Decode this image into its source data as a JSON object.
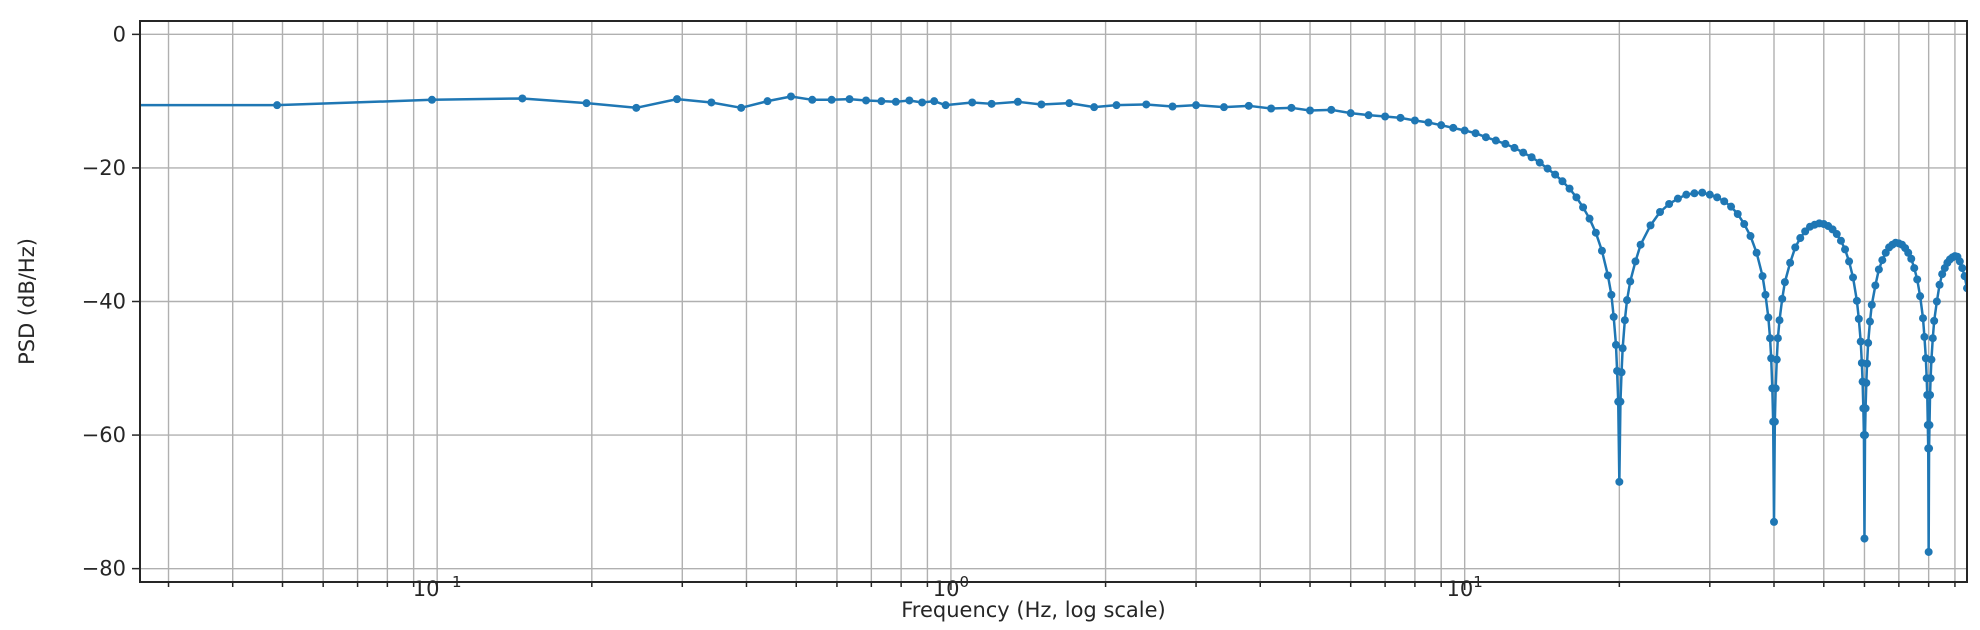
{
  "chart_data": {
    "type": "line",
    "title": "",
    "xlabel": "Frequency (Hz, log scale)",
    "ylabel": "PSD (dB/Hz)",
    "xscale": "log",
    "xlim": [
      0.0264,
      95
    ],
    "ylim": [
      -82,
      2
    ],
    "grid": "major and minor",
    "markers": true,
    "color": "#1f77b4",
    "x_ticks": [
      {
        "value": 0.1,
        "base": "10",
        "exp": "−1"
      },
      {
        "value": 1,
        "base": "10",
        "exp": "0"
      },
      {
        "value": 10,
        "base": "10",
        "exp": "1"
      }
    ],
    "y_ticks": [
      {
        "value": 0,
        "label": "0"
      },
      {
        "value": -20,
        "label": "−20"
      },
      {
        "value": -40,
        "label": "−40"
      },
      {
        "value": -60,
        "label": "−60"
      },
      {
        "value": -80,
        "label": "−80"
      }
    ],
    "series": [
      {
        "x": [
          0.0488,
          0.0977,
          0.1465,
          0.1953,
          0.2441,
          0.293,
          0.3418,
          0.3906,
          0.4395,
          0.4883,
          0.5371,
          0.5859,
          0.6348,
          0.6836,
          0.7324,
          0.7813,
          0.8301,
          0.8789,
          0.9277,
          0.9766,
          1.1,
          1.2,
          1.35,
          1.5,
          1.7,
          1.9,
          2.1,
          2.4,
          2.7,
          3,
          3.4,
          3.8,
          4.2,
          4.6,
          5,
          5.5,
          6,
          6.5,
          7,
          7.5,
          8,
          8.5,
          9,
          9.5,
          10,
          10.5,
          11,
          11.5,
          12,
          12.5,
          13,
          13.5,
          14,
          14.5,
          15,
          15.5,
          16,
          16.5,
          17,
          17.5,
          18,
          18.5,
          19,
          19.3,
          19.5,
          19.7,
          19.8,
          19.9,
          20,
          20.1,
          20.2,
          20.3,
          20.5,
          20.7,
          21,
          21.5,
          22,
          23,
          24,
          25,
          26,
          27,
          28,
          29,
          30,
          31,
          32,
          33,
          34,
          35,
          36,
          37,
          38,
          38.5,
          39,
          39.3,
          39.5,
          39.7,
          39.85,
          40,
          40.15,
          40.3,
          40.5,
          40.7,
          41,
          41.5,
          42,
          43,
          44,
          45,
          46,
          47,
          48,
          49,
          50,
          51,
          52,
          53,
          54,
          55,
          56,
          57,
          58,
          58.5,
          59,
          59.3,
          59.5,
          59.7,
          59.85,
          60,
          60.15,
          60.3,
          60.5,
          60.7,
          61,
          61.5,
          62,
          63,
          64,
          65,
          66,
          67,
          68,
          69,
          70,
          71,
          72,
          73,
          74,
          75,
          76,
          77,
          78,
          78.5,
          79,
          79.3,
          79.5,
          79.7,
          79.85,
          80,
          80.15,
          80.3,
          80.5,
          80.7,
          81,
          81.5,
          82,
          83,
          84,
          85,
          86,
          87,
          88,
          89,
          90,
          91,
          92,
          93,
          94,
          95
        ],
        "y": [
          -10.6,
          -9.8,
          -9.6,
          -10.3,
          -11.0,
          -9.7,
          -10.2,
          -11.0,
          -10.0,
          -9.3,
          -9.8,
          -9.8,
          -9.7,
          -9.9,
          -10.0,
          -10.1,
          -9.9,
          -10.2,
          -10.0,
          -10.6,
          -10.2,
          -10.4,
          -10.1,
          -10.5,
          -10.3,
          -10.9,
          -10.6,
          -10.5,
          -10.8,
          -10.6,
          -10.9,
          -10.7,
          -11.1,
          -11.0,
          -11.4,
          -11.3,
          -11.8,
          -12.1,
          -12.3,
          -12.5,
          -12.9,
          -13.2,
          -13.6,
          -14.0,
          -14.4,
          -14.8,
          -15.4,
          -15.9,
          -16.4,
          -17.0,
          -17.7,
          -18.4,
          -19.2,
          -20.1,
          -21.0,
          -22.0,
          -23.1,
          -24.4,
          -25.9,
          -27.6,
          -29.7,
          -32.4,
          -36.1,
          -39.0,
          -42.3,
          -46.5,
          -50.4,
          -55.0,
          -67.0,
          -55.0,
          -50.6,
          -47.0,
          -42.8,
          -39.8,
          -37.0,
          -34.0,
          -31.5,
          -28.6,
          -26.6,
          -25.4,
          -24.6,
          -24.0,
          -23.8,
          -23.7,
          -24.0,
          -24.4,
          -25.0,
          -25.8,
          -26.9,
          -28.4,
          -30.2,
          -32.7,
          -36.2,
          -39.0,
          -42.4,
          -45.5,
          -48.5,
          -53.0,
          -58.0,
          -73.0,
          -58.0,
          -53.0,
          -48.7,
          -45.5,
          -42.8,
          -39.6,
          -37.1,
          -34.2,
          -31.9,
          -30.5,
          -29.5,
          -28.8,
          -28.5,
          -28.3,
          -28.4,
          -28.7,
          -29.2,
          -29.9,
          -30.9,
          -32.2,
          -34.0,
          -36.4,
          -39.9,
          -42.6,
          -46.0,
          -49.2,
          -52.0,
          -56.0,
          -60.0,
          -75.5,
          -60.0,
          -56.0,
          -52.2,
          -49.3,
          -46.2,
          -43.0,
          -40.5,
          -37.6,
          -35.2,
          -33.8,
          -32.7,
          -31.9,
          -31.5,
          -31.2,
          -31.3,
          -31.5,
          -32.0,
          -32.7,
          -33.6,
          -35.0,
          -36.7,
          -39.2,
          -42.5,
          -45.3,
          -48.5,
          -51.5,
          -54.0,
          -58.5,
          -62.0,
          -77.5,
          -62.0,
          -58.5,
          -54.0,
          -51.5,
          -48.7,
          -45.5,
          -42.9,
          -40.0,
          -37.5,
          -35.9,
          -35.0,
          -34.2,
          -33.7,
          -33.4,
          -33.2,
          -33.3,
          -34.0,
          -35.0,
          -36.2,
          -38.0
        ]
      }
    ]
  }
}
